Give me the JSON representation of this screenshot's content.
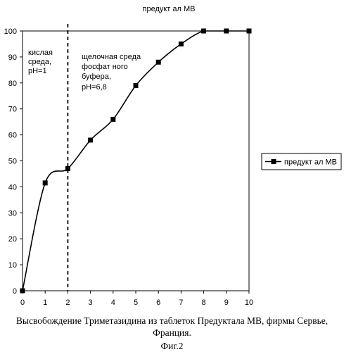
{
  "chart_data": {
    "type": "line",
    "title": "предукт ал МВ",
    "x": [
      0,
      1,
      2,
      3,
      4,
      5,
      6,
      7,
      8,
      9,
      10
    ],
    "series": [
      {
        "name": "предукт ал МВ",
        "values": [
          0,
          41.5,
          47,
          58,
          66,
          79,
          88,
          95,
          100,
          100,
          100
        ]
      }
    ],
    "xlim": [
      0,
      10
    ],
    "ylim": [
      0,
      100
    ],
    "x_ticks": [
      "0",
      "1",
      "2",
      "3",
      "4",
      "5",
      "6",
      "7",
      "8",
      "9",
      "10"
    ],
    "y_ticks": [
      "0",
      "10",
      "20",
      "30",
      "40",
      "50",
      "60",
      "70",
      "80",
      "90",
      "100"
    ],
    "grid": false,
    "legend_position": "right",
    "vline_x": 2,
    "annotations": {
      "acid": [
        "кислая",
        "среда,",
        "pH=1"
      ],
      "alkaline": [
        "щелочная среда",
        "фосфат ного",
        "буфера,",
        "pH=6,8"
      ]
    }
  },
  "caption": {
    "line1": "Высвобождение Триметазидина из таблеток  Предуктала МВ, фирмы Сервье,",
    "line2": "Франция.",
    "figure": "Фиг.2"
  }
}
